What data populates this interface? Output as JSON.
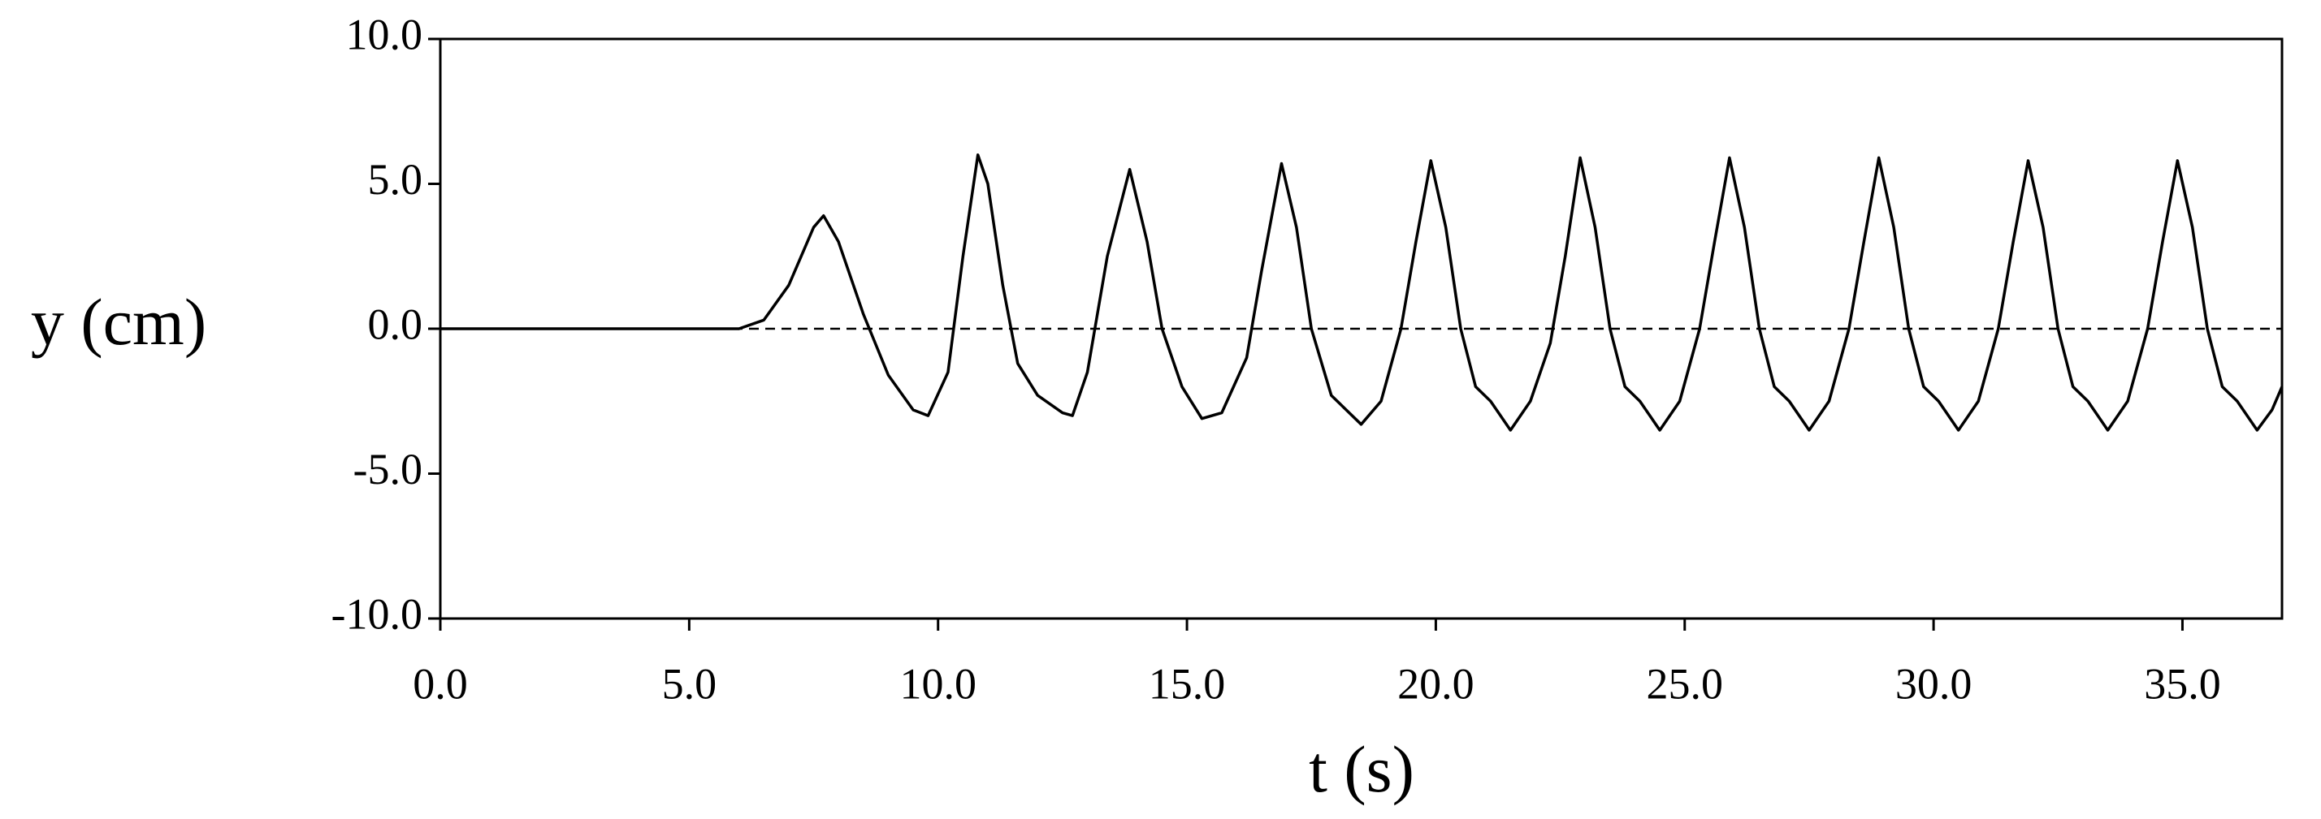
{
  "chart_data": {
    "type": "line",
    "x_label": "t (s)",
    "y_label": "y (cm)",
    "xlim": [
      0,
      37
    ],
    "ylim": [
      -10,
      10
    ],
    "xticks": [
      {
        "value": 0,
        "label": "0.0"
      },
      {
        "value": 5,
        "label": "5.0"
      },
      {
        "value": 10,
        "label": "10.0"
      },
      {
        "value": 15,
        "label": "15.0"
      },
      {
        "value": 20,
        "label": "20.0"
      },
      {
        "value": 25,
        "label": "25.0"
      },
      {
        "value": 30,
        "label": "30.0"
      },
      {
        "value": 35,
        "label": "35.0"
      }
    ],
    "yticks": [
      {
        "value": -10,
        "label": "-10.0"
      },
      {
        "value": -5,
        "label": "-5.0"
      },
      {
        "value": 0,
        "label": "0.0"
      },
      {
        "value": 5,
        "label": "5.0"
      },
      {
        "value": 10,
        "label": "10.0"
      }
    ],
    "reference_line": 0,
    "series": [
      {
        "color": "#000000",
        "x": [
          0,
          6,
          6.5,
          7.0,
          7.5,
          7.7,
          8.0,
          8.5,
          9.0,
          9.5,
          9.8,
          10.2,
          10.5,
          10.8,
          11.0,
          11.3,
          11.6,
          12.0,
          12.5,
          12.7,
          13.0,
          13.4,
          13.85,
          14.2,
          14.5,
          14.9,
          15.3,
          15.7,
          16.2,
          16.5,
          16.9,
          17.2,
          17.5,
          17.9,
          18.5,
          18.9,
          19.3,
          19.6,
          19.9,
          20.2,
          20.5,
          20.8,
          21.1,
          21.5,
          21.9,
          22.3,
          22.6,
          22.9,
          23.2,
          23.5,
          23.8,
          24.1,
          24.5,
          24.9,
          25.3,
          25.6,
          25.9,
          26.2,
          26.5,
          26.8,
          27.1,
          27.5,
          27.9,
          28.3,
          28.6,
          28.9,
          29.2,
          29.5,
          29.8,
          30.1,
          30.5,
          30.9,
          31.3,
          31.6,
          31.9,
          32.2,
          32.5,
          32.8,
          33.1,
          33.5,
          33.9,
          34.3,
          34.6,
          34.9,
          35.2,
          35.5,
          35.8,
          36.1,
          36.5,
          36.8,
          37.0
        ],
        "values": [
          0,
          0,
          0.3,
          1.5,
          3.5,
          3.9,
          3.0,
          0.5,
          -1.6,
          -2.8,
          -3.0,
          -1.5,
          2.5,
          6.0,
          5.0,
          1.5,
          -1.2,
          -2.3,
          -2.9,
          -3.0,
          -1.5,
          2.5,
          5.5,
          3.0,
          0.0,
          -2.0,
          -3.1,
          -2.9,
          -1.0,
          2.0,
          5.7,
          3.5,
          0.0,
          -2.3,
          -3.3,
          -2.5,
          0.0,
          3.0,
          5.8,
          3.5,
          0.0,
          -2.0,
          -2.5,
          -3.5,
          -2.5,
          -0.5,
          2.5,
          5.9,
          3.5,
          0.0,
          -2.0,
          -2.5,
          -3.5,
          -2.5,
          0.0,
          3.0,
          5.9,
          3.5,
          0.0,
          -2.0,
          -2.5,
          -3.5,
          -2.5,
          0.0,
          3.0,
          5.9,
          3.5,
          0.0,
          -2.0,
          -2.5,
          -3.5,
          -2.5,
          0.0,
          3.0,
          5.8,
          3.5,
          0.0,
          -2.0,
          -2.5,
          -3.5,
          -2.5,
          0.0,
          3.0,
          5.8,
          3.5,
          0.0,
          -2.0,
          -2.5,
          -3.5,
          -2.8,
          -2.0
        ]
      }
    ]
  }
}
